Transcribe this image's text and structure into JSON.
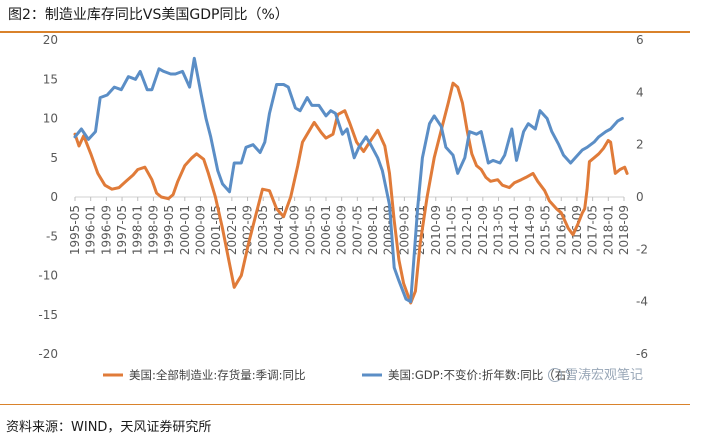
{
  "header": {
    "title": "图2：制造业库存同比VS美国GDP同比（%）"
  },
  "footer": {
    "source": "资料来源：WIND，天风证券研究所"
  },
  "watermark": {
    "text": "雪涛宏观笔记"
  },
  "chart_data": {
    "type": "line",
    "title": "制造业库存同比VS美国GDP同比（%）",
    "categories": [
      "1995-05",
      "1996-01",
      "1996-09",
      "1997-05",
      "1998-01",
      "1998-09",
      "1999-05",
      "2000-01",
      "2000-09",
      "2001-05",
      "2002-01",
      "2002-09",
      "2003-05",
      "2004-01",
      "2004-09",
      "2005-05",
      "2006-01",
      "2006-09",
      "2007-05",
      "2008-01",
      "2008-09",
      "2009-05",
      "2010-01",
      "2010-09",
      "2011-05",
      "2012-01",
      "2012-09",
      "2013-05",
      "2014-01",
      "2014-09",
      "2015-05",
      "2016-01",
      "2016-09",
      "2017-05",
      "2018-01",
      "2018-09"
    ],
    "y_left": {
      "min": -20,
      "max": 20,
      "ticks": [
        20,
        15,
        10,
        5,
        0,
        -5,
        -10,
        -15,
        -20
      ]
    },
    "y_right": {
      "min": -6,
      "max": 6,
      "ticks": [
        6,
        4,
        2,
        0,
        -2,
        -4,
        -6
      ]
    },
    "series": [
      {
        "name": "美国:全部制造业:存货量:季调:同比",
        "axis": "left",
        "color": "#e07b39",
        "points": [
          [
            1995.33,
            8.0
          ],
          [
            1995.5,
            6.5
          ],
          [
            1995.7,
            7.8
          ],
          [
            1996.0,
            5.5
          ],
          [
            1996.3,
            3.0
          ],
          [
            1996.6,
            1.5
          ],
          [
            1996.9,
            1.0
          ],
          [
            1997.2,
            1.2
          ],
          [
            1997.5,
            2.0
          ],
          [
            1997.8,
            2.8
          ],
          [
            1998.0,
            3.5
          ],
          [
            1998.3,
            3.8
          ],
          [
            1998.6,
            2.2
          ],
          [
            1998.8,
            0.5
          ],
          [
            1999.0,
            0.0
          ],
          [
            1999.3,
            -0.2
          ],
          [
            1999.5,
            0.3
          ],
          [
            1999.7,
            2.0
          ],
          [
            2000.0,
            4.0
          ],
          [
            2000.3,
            5.0
          ],
          [
            2000.5,
            5.5
          ],
          [
            2000.8,
            4.8
          ],
          [
            2001.0,
            3.0
          ],
          [
            2001.3,
            0.0
          ],
          [
            2001.6,
            -4.0
          ],
          [
            2001.9,
            -8.5
          ],
          [
            2002.1,
            -11.5
          ],
          [
            2002.4,
            -10.0
          ],
          [
            2002.7,
            -6.0
          ],
          [
            2003.0,
            -2.5
          ],
          [
            2003.3,
            1.0
          ],
          [
            2003.6,
            0.8
          ],
          [
            2003.9,
            -1.5
          ],
          [
            2004.2,
            -2.5
          ],
          [
            2004.5,
            0.0
          ],
          [
            2004.8,
            4.0
          ],
          [
            2005.0,
            7.0
          ],
          [
            2005.3,
            8.5
          ],
          [
            2005.5,
            9.5
          ],
          [
            2005.8,
            8.2
          ],
          [
            2006.0,
            7.5
          ],
          [
            2006.3,
            8.0
          ],
          [
            2006.5,
            10.5
          ],
          [
            2006.8,
            11.0
          ],
          [
            2007.0,
            9.5
          ],
          [
            2007.3,
            7.0
          ],
          [
            2007.6,
            5.8
          ],
          [
            2007.9,
            7.2
          ],
          [
            2008.2,
            8.5
          ],
          [
            2008.5,
            6.5
          ],
          [
            2008.7,
            3.0
          ],
          [
            2008.9,
            -3.0
          ],
          [
            2009.1,
            -8.0
          ],
          [
            2009.3,
            -11.0
          ],
          [
            2009.6,
            -13.5
          ],
          [
            2009.8,
            -12.0
          ],
          [
            2010.0,
            -6.0
          ],
          [
            2010.3,
            0.0
          ],
          [
            2010.6,
            5.0
          ],
          [
            2010.9,
            8.5
          ],
          [
            2011.2,
            12.0
          ],
          [
            2011.4,
            14.5
          ],
          [
            2011.6,
            14.0
          ],
          [
            2011.8,
            12.0
          ],
          [
            2012.0,
            8.5
          ],
          [
            2012.2,
            5.5
          ],
          [
            2012.4,
            4.0
          ],
          [
            2012.6,
            3.5
          ],
          [
            2012.8,
            2.5
          ],
          [
            2013.0,
            2.0
          ],
          [
            2013.3,
            2.2
          ],
          [
            2013.5,
            1.5
          ],
          [
            2013.8,
            1.2
          ],
          [
            2014.0,
            1.8
          ],
          [
            2014.3,
            2.2
          ],
          [
            2014.5,
            2.5
          ],
          [
            2014.8,
            3.0
          ],
          [
            2015.0,
            2.0
          ],
          [
            2015.3,
            0.8
          ],
          [
            2015.5,
            -0.5
          ],
          [
            2015.8,
            -1.5
          ],
          [
            2016.0,
            -2.0
          ],
          [
            2016.3,
            -4.0
          ],
          [
            2016.5,
            -4.8
          ],
          [
            2016.7,
            -3.5
          ],
          [
            2016.9,
            -2.0
          ],
          [
            2017.0,
            -1.5
          ],
          [
            2017.1,
            1.0
          ],
          [
            2017.2,
            4.5
          ],
          [
            2017.4,
            5.0
          ],
          [
            2017.6,
            5.5
          ],
          [
            2017.8,
            6.2
          ],
          [
            2018.0,
            7.2
          ],
          [
            2018.1,
            7.0
          ],
          [
            2018.3,
            3.0
          ],
          [
            2018.5,
            3.5
          ],
          [
            2018.7,
            3.8
          ],
          [
            2018.8,
            3.0
          ]
        ]
      },
      {
        "name": "美国:GDP:不变价:折年数:同比（右）",
        "axis": "right",
        "color": "#5b8ec6",
        "points": [
          [
            1995.33,
            2.3
          ],
          [
            1995.6,
            2.6
          ],
          [
            1995.9,
            2.2
          ],
          [
            1996.2,
            2.5
          ],
          [
            1996.4,
            3.8
          ],
          [
            1996.7,
            3.9
          ],
          [
            1997.0,
            4.2
          ],
          [
            1997.3,
            4.1
          ],
          [
            1997.6,
            4.6
          ],
          [
            1997.9,
            4.5
          ],
          [
            1998.1,
            4.8
          ],
          [
            1998.4,
            4.1
          ],
          [
            1998.6,
            4.1
          ],
          [
            1998.9,
            4.9
          ],
          [
            1999.1,
            4.8
          ],
          [
            1999.4,
            4.7
          ],
          [
            1999.6,
            4.7
          ],
          [
            1999.9,
            4.8
          ],
          [
            2000.2,
            4.2
          ],
          [
            2000.4,
            5.3
          ],
          [
            2000.7,
            3.9
          ],
          [
            2000.9,
            3.0
          ],
          [
            2001.1,
            2.3
          ],
          [
            2001.4,
            1.0
          ],
          [
            2001.6,
            0.5
          ],
          [
            2001.9,
            0.2
          ],
          [
            2002.1,
            1.3
          ],
          [
            2002.4,
            1.3
          ],
          [
            2002.6,
            1.9
          ],
          [
            2002.9,
            2.0
          ],
          [
            2003.2,
            1.7
          ],
          [
            2003.4,
            2.1
          ],
          [
            2003.6,
            3.2
          ],
          [
            2003.9,
            4.3
          ],
          [
            2004.2,
            4.3
          ],
          [
            2004.4,
            4.2
          ],
          [
            2004.7,
            3.4
          ],
          [
            2004.9,
            3.3
          ],
          [
            2005.2,
            3.8
          ],
          [
            2005.4,
            3.5
          ],
          [
            2005.7,
            3.5
          ],
          [
            2006.0,
            3.1
          ],
          [
            2006.2,
            3.3
          ],
          [
            2006.4,
            3.2
          ],
          [
            2006.7,
            2.4
          ],
          [
            2006.9,
            2.6
          ],
          [
            2007.2,
            1.5
          ],
          [
            2007.4,
            1.9
          ],
          [
            2007.7,
            2.3
          ],
          [
            2007.9,
            2.0
          ],
          [
            2008.2,
            1.5
          ],
          [
            2008.4,
            1.0
          ],
          [
            2008.7,
            -0.3
          ],
          [
            2008.9,
            -2.7
          ],
          [
            2009.1,
            -3.2
          ],
          [
            2009.4,
            -3.9
          ],
          [
            2009.6,
            -4.0
          ],
          [
            2009.9,
            -0.4
          ],
          [
            2010.1,
            1.5
          ],
          [
            2010.4,
            2.8
          ],
          [
            2010.6,
            3.1
          ],
          [
            2010.9,
            2.7
          ],
          [
            2011.1,
            1.9
          ],
          [
            2011.4,
            1.6
          ],
          [
            2011.6,
            0.9
          ],
          [
            2011.9,
            1.5
          ],
          [
            2012.1,
            2.5
          ],
          [
            2012.4,
            2.4
          ],
          [
            2012.6,
            2.5
          ],
          [
            2012.9,
            1.3
          ],
          [
            2013.1,
            1.4
          ],
          [
            2013.4,
            1.3
          ],
          [
            2013.6,
            1.6
          ],
          [
            2013.9,
            2.6
          ],
          [
            2014.1,
            1.4
          ],
          [
            2014.4,
            2.5
          ],
          [
            2014.6,
            2.8
          ],
          [
            2014.9,
            2.6
          ],
          [
            2015.1,
            3.3
          ],
          [
            2015.4,
            3.0
          ],
          [
            2015.6,
            2.5
          ],
          [
            2015.9,
            2.0
          ],
          [
            2016.1,
            1.6
          ],
          [
            2016.4,
            1.3
          ],
          [
            2016.6,
            1.5
          ],
          [
            2016.9,
            1.8
          ],
          [
            2017.1,
            1.9
          ],
          [
            2017.4,
            2.1
          ],
          [
            2017.6,
            2.3
          ],
          [
            2017.9,
            2.5
          ],
          [
            2018.1,
            2.6
          ],
          [
            2018.4,
            2.9
          ],
          [
            2018.6,
            3.0
          ]
        ]
      }
    ],
    "legend": {
      "position": "bottom"
    }
  }
}
